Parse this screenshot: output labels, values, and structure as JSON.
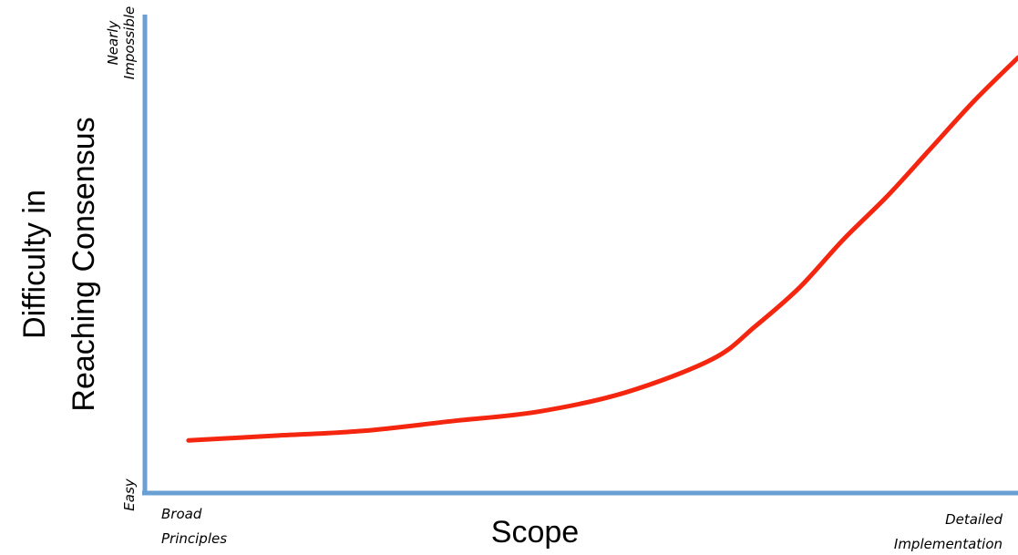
{
  "chart_data": {
    "type": "line",
    "title": "",
    "xlabel": "Scope",
    "ylabel_lines": [
      "Difficulty in",
      "Reaching Consensus"
    ],
    "x_tick_labels": {
      "start": [
        "Broad",
        "Principles"
      ],
      "end": [
        "Detailed",
        "Implementation"
      ]
    },
    "y_tick_labels": {
      "low": [
        "Easy"
      ],
      "high": [
        "Nearly",
        "Impossible"
      ]
    },
    "xlim": [
      0,
      1
    ],
    "ylim": [
      0,
      1
    ],
    "grid": false,
    "legend": "none",
    "series": [
      {
        "color": "#f5260f",
        "x": [
          0.05,
          0.15,
          0.25,
          0.35,
          0.45,
          0.55,
          0.65,
          0.7,
          0.75,
          0.8,
          0.85,
          0.9,
          0.95,
          1.0
        ],
        "y": [
          0.11,
          0.12,
          0.13,
          0.15,
          0.17,
          0.21,
          0.28,
          0.35,
          0.43,
          0.53,
          0.62,
          0.72,
          0.82,
          0.91
        ]
      }
    ],
    "axis_color": "#6a9fd4"
  }
}
